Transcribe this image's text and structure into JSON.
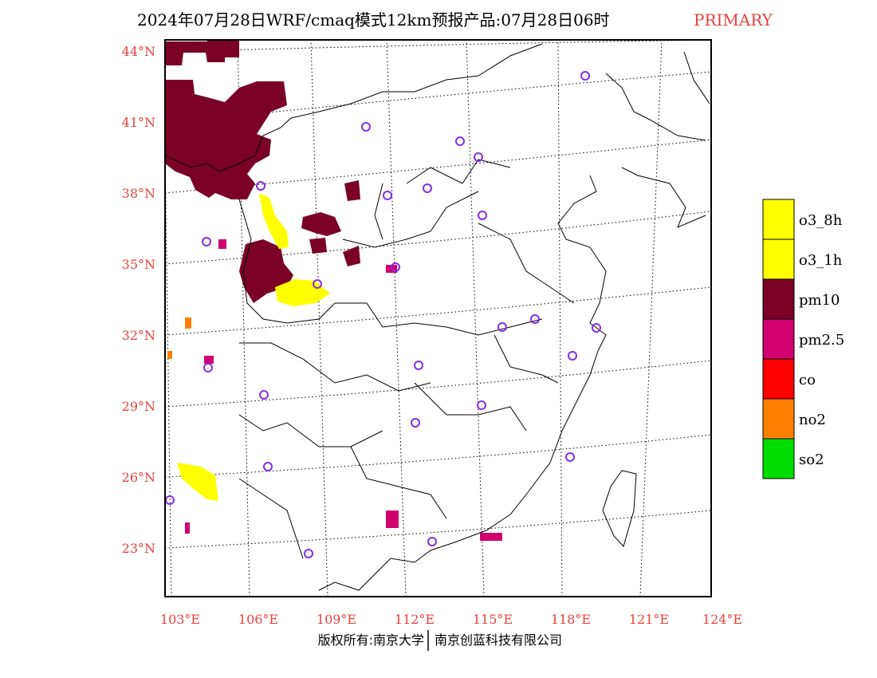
{
  "title": {
    "main": "2024年07月28日WRF/cmaq模式12km预报产品:07月28日06时",
    "tag": "PRIMARY"
  },
  "axes": {
    "lat_labels": [
      "44°N",
      "41°N",
      "38°N",
      "35°N",
      "32°N",
      "29°N",
      "26°N",
      "23°N"
    ],
    "lon_labels": [
      "103°E",
      "106°E",
      "109°E",
      "112°E",
      "115°E",
      "118°E",
      "121°E",
      "124°E"
    ]
  },
  "legend": [
    {
      "label": "o3_8h",
      "color": "#ffff00"
    },
    {
      "label": "o3_1h",
      "color": "#ffff00"
    },
    {
      "label": "pm10",
      "color": "#7a0026"
    },
    {
      "label": "pm2.5",
      "color": "#d1006f"
    },
    {
      "label": "co",
      "color": "#ff0000"
    },
    {
      "label": "no2",
      "color": "#ff7f00"
    },
    {
      "label": "so2",
      "color": "#00dd00"
    }
  ],
  "colors": {
    "pm10": "#7a0026",
    "pm25": "#d1006f",
    "o3": "#ffff00",
    "no2": "#ff7f00",
    "station": "#8a2be2",
    "boundary": "#000000"
  },
  "footer": {
    "copyright": "版权所有:南京大学",
    "company": "南京创蓝科技有限公司"
  }
}
